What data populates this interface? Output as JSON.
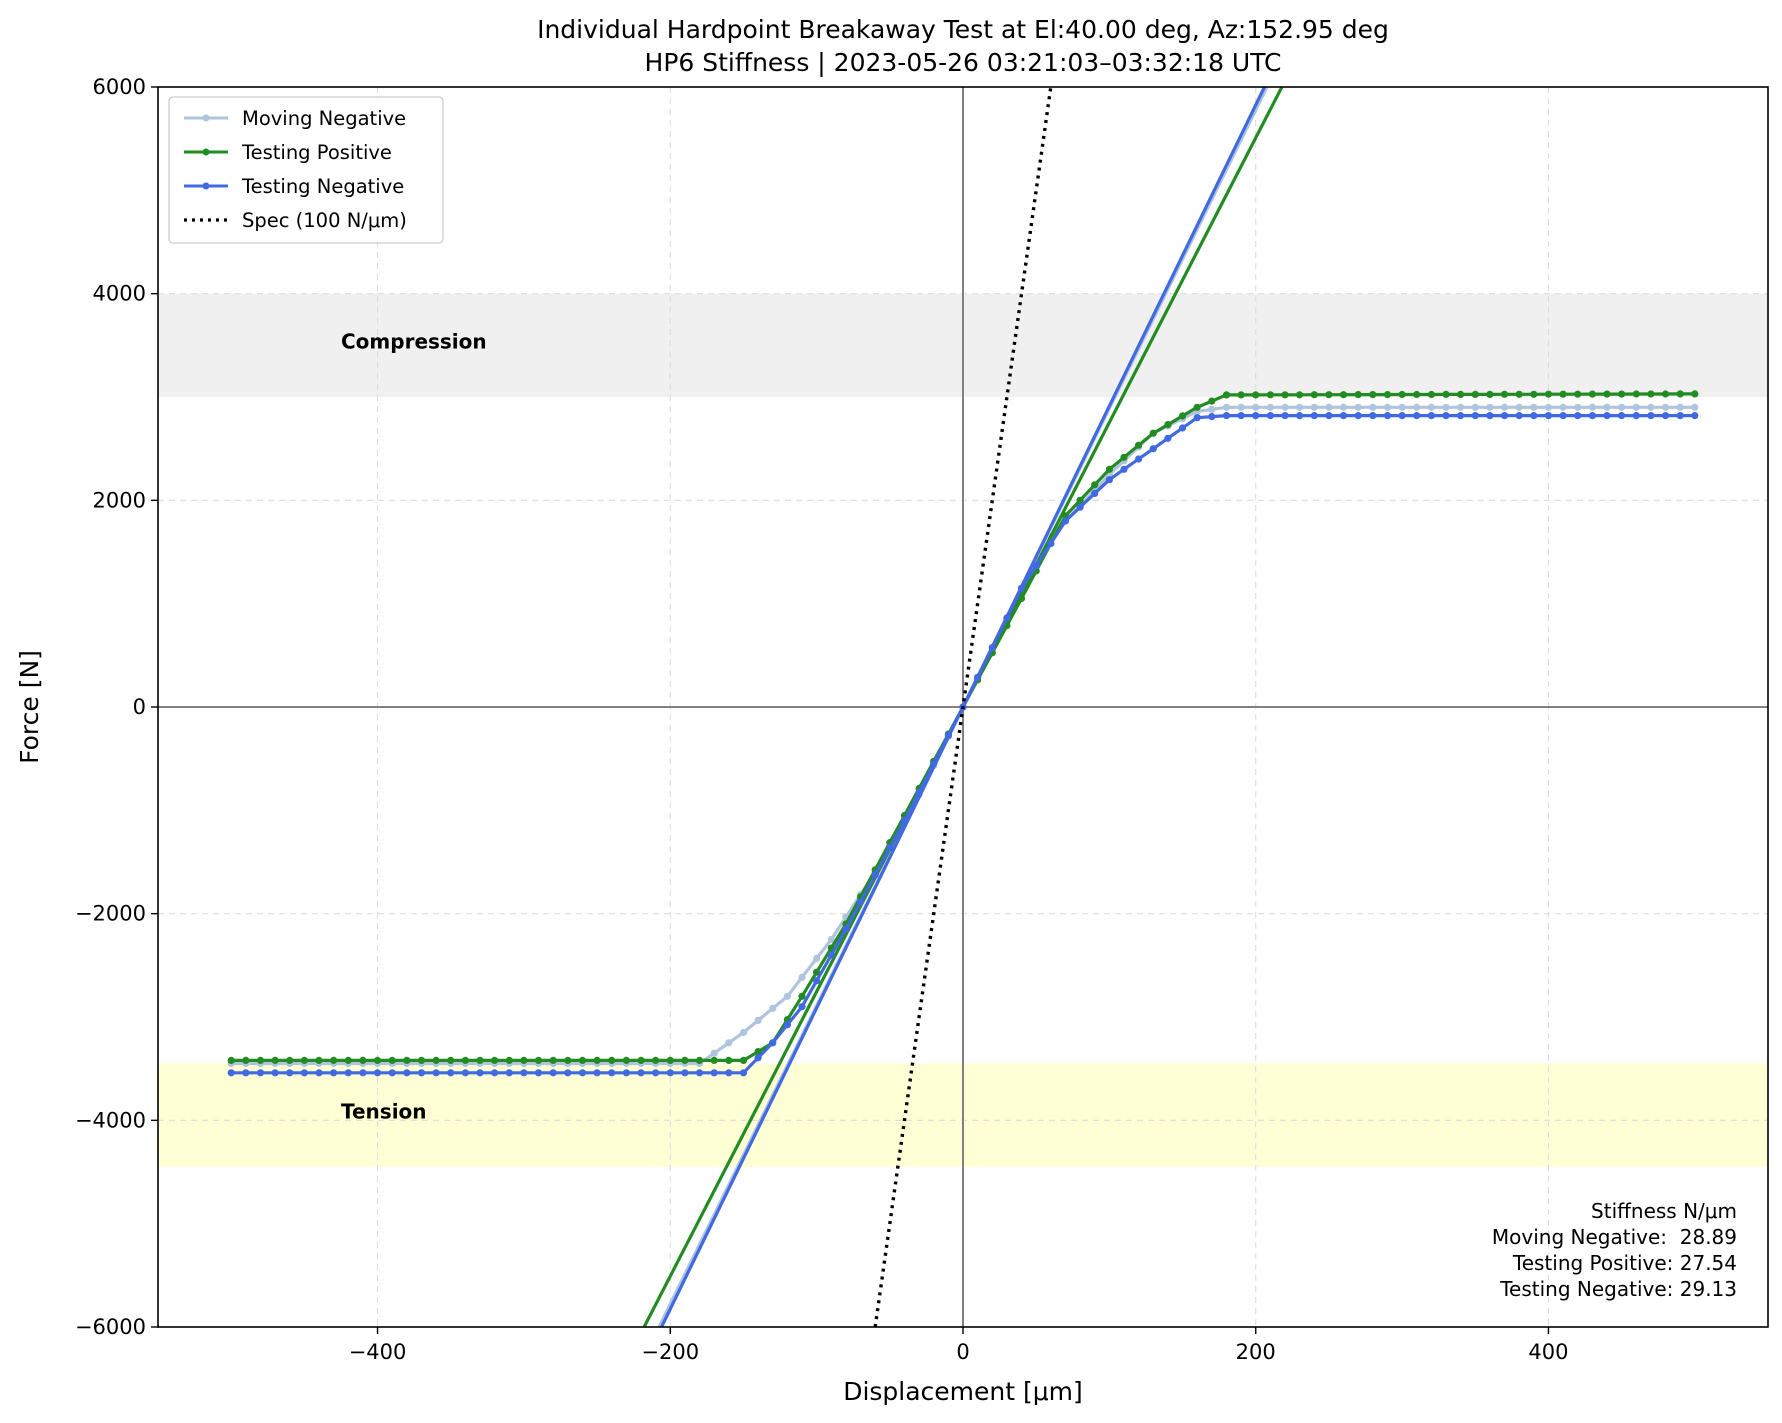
{
  "chart_data": {
    "type": "line",
    "title": "Individual Hardpoint Breakaway Test at El:40.00 deg, Az:152.95 deg",
    "subtitle": "HP6 Stiffness | 2023-05-26 03:21:03–03:32:18 UTC",
    "xlabel": "Displacement [μm]",
    "ylabel": "Force [N]",
    "xlim": [
      -550,
      550
    ],
    "ylim": [
      -6000,
      6000
    ],
    "xticks": [
      -400,
      -200,
      0,
      200,
      400
    ],
    "yticks": [
      -6000,
      -4000,
      -2000,
      0,
      2000,
      4000,
      6000
    ],
    "xtick_labels": [
      "−400",
      "−200",
      "0",
      "200",
      "400"
    ],
    "ytick_labels": [
      "−6000",
      "−4000",
      "−2000",
      "0",
      "2000",
      "4000",
      "6000"
    ],
    "grid": true,
    "legend_position": "top-left",
    "regions": [
      {
        "label": "Compression",
        "y_range": [
          3000,
          4000
        ],
        "color": "#f0f0f0"
      },
      {
        "label": "Tension",
        "y_range": [
          -4450,
          -3450
        ],
        "color": "#ffffd6"
      }
    ],
    "series": [
      {
        "name": "Moving Negative",
        "color": "#b0c4de",
        "stiffness": 28.89,
        "plateau_high": 2900,
        "plateau_low": -3450,
        "x_range": [
          -500,
          500
        ],
        "points": [
          [
            -500,
            -3450
          ],
          [
            -180,
            -3450
          ],
          [
            -150,
            -3150
          ],
          [
            -120,
            -2800
          ],
          [
            -90,
            -2250
          ],
          [
            -60,
            -1600
          ],
          [
            -30,
            -850
          ],
          [
            0,
            0
          ],
          [
            30,
            850
          ],
          [
            60,
            1650
          ],
          [
            100,
            2250
          ],
          [
            130,
            2650
          ],
          [
            160,
            2860
          ],
          [
            180,
            2900
          ],
          [
            500,
            2900
          ]
        ]
      },
      {
        "name": "Testing Positive",
        "color": "#228b22",
        "stiffness": 27.54,
        "plateau_high": 3030,
        "plateau_low": -3420,
        "x_range": [
          -500,
          500
        ],
        "points": [
          [
            -500,
            -3420
          ],
          [
            -150,
            -3420
          ],
          [
            -130,
            -3250
          ],
          [
            -110,
            -2800
          ],
          [
            -80,
            -2100
          ],
          [
            -40,
            -1050
          ],
          [
            0,
            0
          ],
          [
            40,
            1050
          ],
          [
            70,
            1850
          ],
          [
            100,
            2300
          ],
          [
            130,
            2650
          ],
          [
            160,
            2900
          ],
          [
            180,
            3020
          ],
          [
            500,
            3030
          ]
        ]
      },
      {
        "name": "Testing Negative",
        "color": "#4169e1",
        "stiffness": 29.13,
        "plateau_high": 2820,
        "plateau_low": -3540,
        "x_range": [
          -500,
          500
        ],
        "points": [
          [
            -500,
            -3540
          ],
          [
            -150,
            -3540
          ],
          [
            -130,
            -3250
          ],
          [
            -110,
            -2900
          ],
          [
            -80,
            -2150
          ],
          [
            -40,
            -1100
          ],
          [
            0,
            0
          ],
          [
            40,
            1150
          ],
          [
            70,
            1800
          ],
          [
            100,
            2200
          ],
          [
            130,
            2500
          ],
          [
            160,
            2800
          ],
          [
            180,
            2820
          ],
          [
            500,
            2820
          ]
        ]
      }
    ],
    "spec": {
      "name": "Spec (100 N/μm)",
      "slope": 100,
      "color": "#000000"
    },
    "stiffness_box": {
      "title": "Stiffness N/μm",
      "lines": [
        "Moving Negative:  28.89",
        "Testing Positive: 27.54",
        "Testing Negative: 29.13"
      ]
    }
  }
}
